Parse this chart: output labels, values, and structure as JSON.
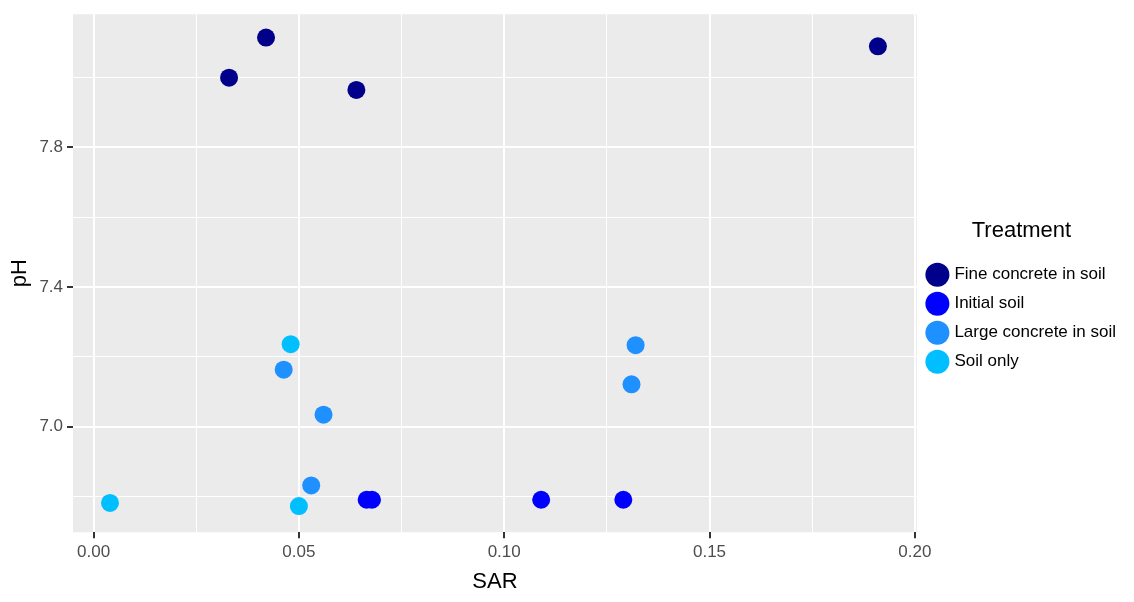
{
  "chart_data": {
    "type": "scatter",
    "xlabel": "SAR",
    "ylabel": "pH",
    "legend_title": "Treatment",
    "legend": "right",
    "grid": true,
    "marker": "circle",
    "xlim": [
      -0.005,
      0.2005
    ],
    "ylim": [
      6.697,
      8.182
    ],
    "xticks": [
      {
        "value": 0,
        "label": "0.00"
      },
      {
        "value": 0.025,
        "label": null
      },
      {
        "value": 0.05,
        "label": "0.05"
      },
      {
        "value": 0.075,
        "label": null
      },
      {
        "value": 0.1,
        "label": "0.10"
      },
      {
        "value": 0.125,
        "label": null
      },
      {
        "value": 0.15,
        "label": "0.15"
      },
      {
        "value": 0.175,
        "label": null
      },
      {
        "value": 0.2,
        "label": "0.20"
      }
    ],
    "yticks": [
      {
        "value": 6.8,
        "label": null
      },
      {
        "value": 7.0,
        "label": "7.0"
      },
      {
        "value": 7.2,
        "label": null
      },
      7.4,
      {
        "value": 7.6,
        "label": null
      },
      7.8,
      {
        "value": 8.0,
        "label": null
      }
    ],
    "series": [
      {
        "name": "Fine concrete in soil",
        "color": "#00008b",
        "x": [
          0.033,
          0.042,
          0.064,
          0.191
        ],
        "values": [
          8.0,
          8.115,
          7.965,
          8.09
        ]
      },
      {
        "name": "Initial soil",
        "color": "#0000ff",
        "x": [
          0.0665,
          0.0678,
          0.109,
          0.129
        ],
        "values": [
          6.79,
          6.79,
          6.79,
          6.79
        ]
      },
      {
        "name": "Large concrete in soil",
        "color": "#1e90ff",
        "x": [
          0.0463,
          0.056,
          0.053,
          0.132,
          0.131
        ],
        "values": [
          7.163,
          7.034,
          6.831,
          7.233,
          7.121
        ]
      },
      {
        "name": "Soil only",
        "color": "#00bfff",
        "x": [
          0.004,
          0.048,
          0.05
        ],
        "values": [
          6.781,
          7.236,
          6.772
        ]
      }
    ]
  }
}
